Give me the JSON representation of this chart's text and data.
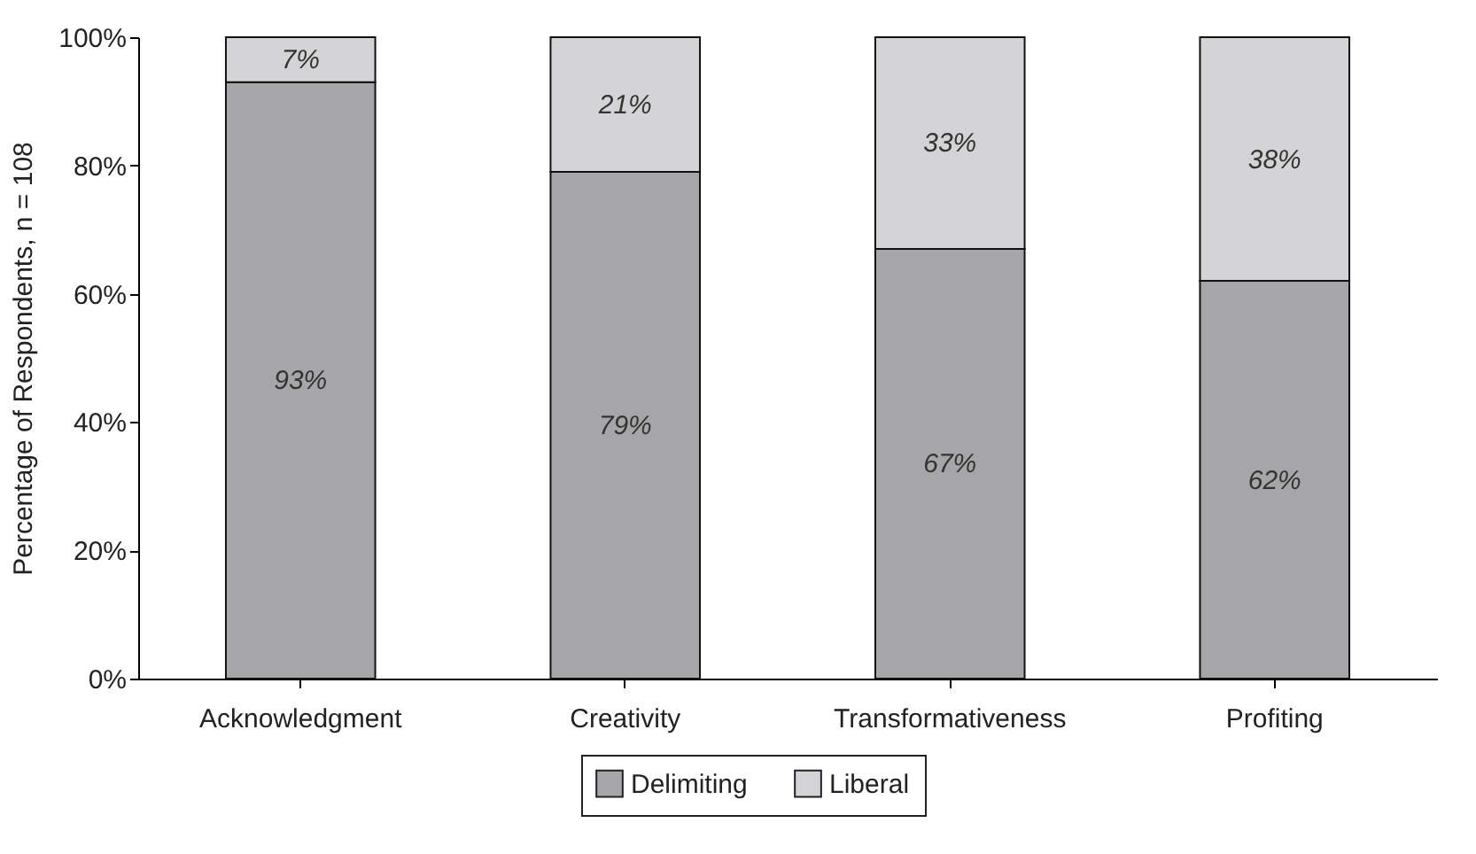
{
  "chart_data": {
    "type": "bar",
    "stacked": true,
    "ylabel": "Percentage of Respondents, n = 108",
    "categories": [
      "Acknowledgment",
      "Creativity",
      "Transformativeness",
      "Profiting"
    ],
    "series": [
      {
        "name": "Delimiting",
        "color": "#a6a6a9",
        "values": [
          93,
          79,
          67,
          62
        ],
        "value_labels": [
          "93%",
          "79%",
          "67%",
          "62%"
        ]
      },
      {
        "name": "Liberal",
        "color": "#d4d4d6",
        "values": [
          7,
          21,
          33,
          38
        ],
        "value_labels": [
          "7%",
          "21%",
          "33%",
          "38%"
        ]
      }
    ],
    "ylim": [
      0,
      100
    ],
    "yticks": [
      {
        "value": 0,
        "label": "0%"
      },
      {
        "value": 20,
        "label": "20%"
      },
      {
        "value": 40,
        "label": "40%"
      },
      {
        "value": 60,
        "label": "60%"
      },
      {
        "value": 80,
        "label": "80%"
      },
      {
        "value": 100,
        "label": "100%"
      }
    ],
    "grid": false,
    "legend": "bottom"
  }
}
